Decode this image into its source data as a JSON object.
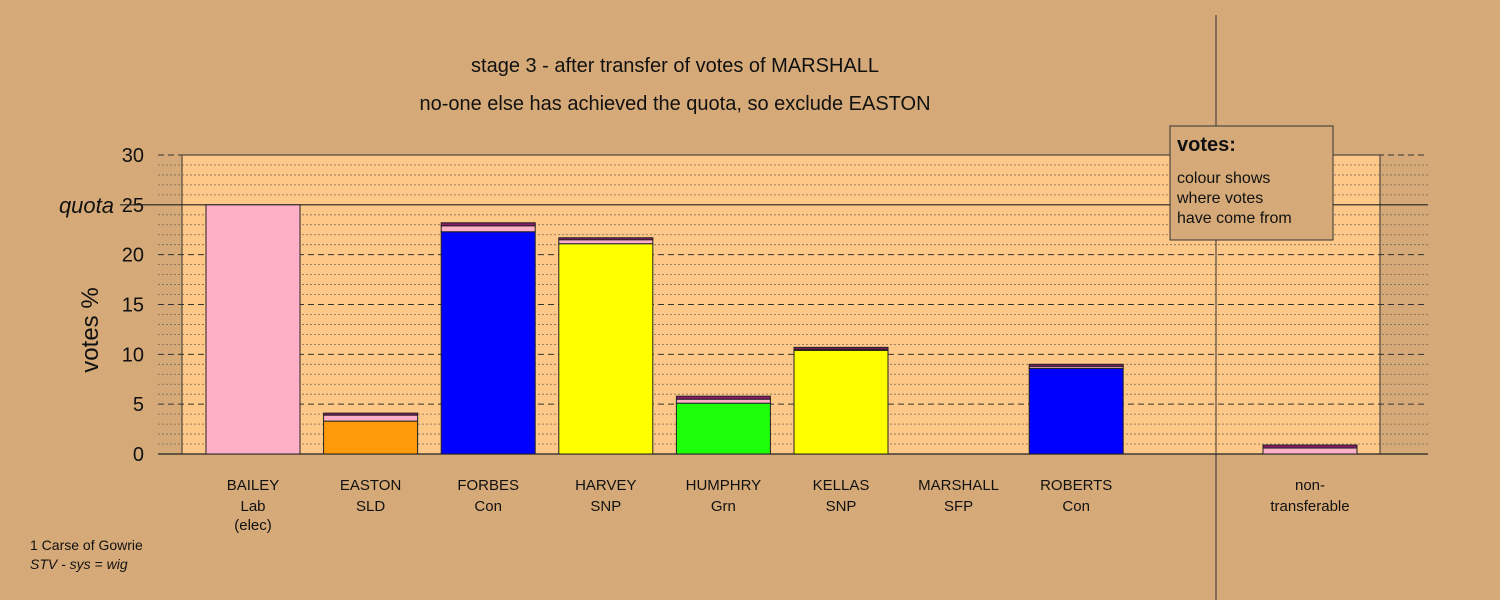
{
  "title_line1": "stage 3 - after transfer of votes of MARSHALL",
  "title_line2": "no-one else has achieved the quota, so exclude EASTON",
  "ylabel": "votes %",
  "quota_label": "quota",
  "legend": {
    "title": "votes:",
    "lines": [
      "colour shows",
      "where votes",
      "have come from"
    ]
  },
  "footnote": {
    "ward": "1 Carse of Gowrie",
    "system": "STV - sys = wig"
  },
  "colors": {
    "background": "#d5aa78",
    "plot_area": "#fdc888",
    "Lab": "#ffb0c8",
    "SLD": "#ff9a0a",
    "Con": "#0000ff",
    "SNP": "#ffff00",
    "Grn": "#1eff0a",
    "SFP": "#8b1a6b"
  },
  "chart_data": {
    "type": "bar",
    "stacked": true,
    "ylim": [
      0,
      30
    ],
    "yticks": [
      0,
      5,
      10,
      15,
      20,
      25,
      30
    ],
    "quota": 25,
    "grid": true,
    "legend_position": "top-right",
    "categories": [
      {
        "name": "BAILEY",
        "party": "Lab",
        "note": "(elec)",
        "segments": [
          {
            "from": "Lab",
            "value": 25.0
          }
        ]
      },
      {
        "name": "EASTON",
        "party": "SLD",
        "segments": [
          {
            "from": "SLD",
            "value": 3.3
          },
          {
            "from": "Lab",
            "value": 0.6
          },
          {
            "from": "SFP",
            "value": 0.2
          }
        ]
      },
      {
        "name": "FORBES",
        "party": "Con",
        "segments": [
          {
            "from": "Con",
            "value": 22.3
          },
          {
            "from": "Lab",
            "value": 0.6
          },
          {
            "from": "SFP",
            "value": 0.3
          }
        ]
      },
      {
        "name": "HARVEY",
        "party": "SNP",
        "segments": [
          {
            "from": "SNP",
            "value": 21.1
          },
          {
            "from": "Lab",
            "value": 0.4
          },
          {
            "from": "SFP",
            "value": 0.2
          }
        ]
      },
      {
        "name": "HUMPHRY",
        "party": "Grn",
        "segments": [
          {
            "from": "Grn",
            "value": 5.1
          },
          {
            "from": "Lab",
            "value": 0.4
          },
          {
            "from": "SFP",
            "value": 0.3
          }
        ]
      },
      {
        "name": "KELLAS",
        "party": "SNP",
        "segments": [
          {
            "from": "SNP",
            "value": 10.4
          },
          {
            "from": "Lab",
            "value": 0.1
          },
          {
            "from": "SFP",
            "value": 0.2
          }
        ]
      },
      {
        "name": "MARSHALL",
        "party": "SFP",
        "segments": []
      },
      {
        "name": "ROBERTS",
        "party": "Con",
        "segments": [
          {
            "from": "Con",
            "value": 8.6
          },
          {
            "from": "Lab",
            "value": 0.2
          },
          {
            "from": "SFP",
            "value": 0.2
          }
        ]
      }
    ],
    "non_transferable": {
      "name": "non-",
      "name2": "transferable",
      "segments": [
        {
          "from": "Lab",
          "value": 0.6
        },
        {
          "from": "SFP",
          "value": 0.3
        }
      ]
    }
  }
}
